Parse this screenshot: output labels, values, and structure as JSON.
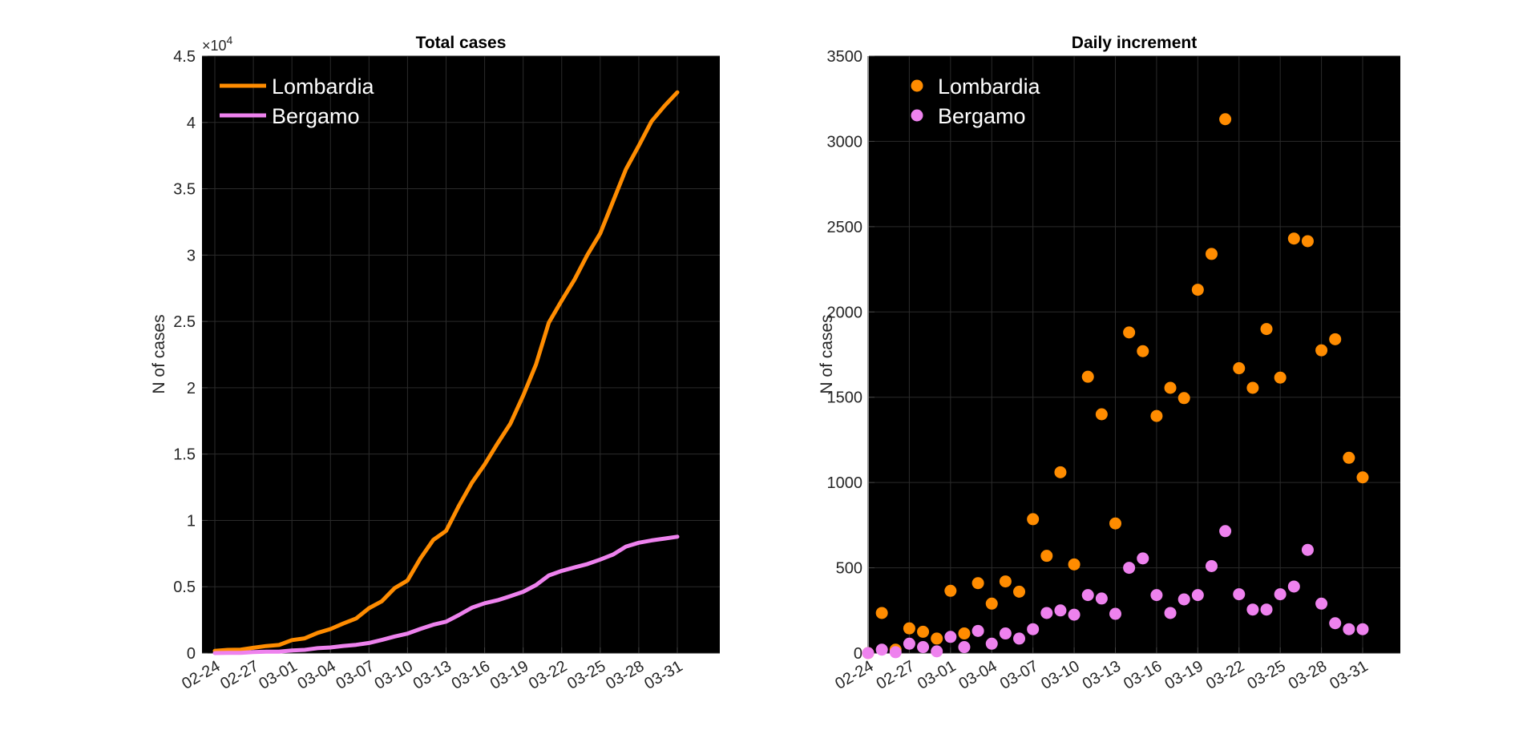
{
  "chart_data": [
    {
      "type": "line",
      "title": "Total cases",
      "ylabel": "N of cases",
      "y_exponent_label": "×10",
      "y_exponent_power": "4",
      "ylim": [
        0,
        4.5
      ],
      "yticks": [
        "0",
        "0.5",
        "1",
        "1.5",
        "2",
        "2.5",
        "3",
        "3.5",
        "4",
        "4.5"
      ],
      "x": [
        "02-24",
        "02-25",
        "02-26",
        "02-27",
        "02-28",
        "02-29",
        "03-01",
        "03-02",
        "03-03",
        "03-04",
        "03-05",
        "03-06",
        "03-07",
        "03-08",
        "03-09",
        "03-10",
        "03-11",
        "03-12",
        "03-13",
        "03-14",
        "03-15",
        "03-16",
        "03-17",
        "03-18",
        "03-19",
        "03-20",
        "03-21",
        "03-22",
        "03-23",
        "03-24",
        "03-25",
        "03-26",
        "03-27",
        "03-28",
        "03-29",
        "03-30",
        "03-31"
      ],
      "xticks": [
        "02-24",
        "02-27",
        "03-01",
        "03-04",
        "03-07",
        "03-10",
        "03-13",
        "03-16",
        "03-19",
        "03-22",
        "03-25",
        "03-28",
        "03-31"
      ],
      "legend": "top-left",
      "background": "#000000",
      "series": [
        {
          "name": "Lombardia",
          "color": "#ff8c00",
          "values": [
            0.017,
            0.024,
            0.026,
            0.04,
            0.053,
            0.061,
            0.098,
            0.111,
            0.152,
            0.181,
            0.223,
            0.261,
            0.338,
            0.391,
            0.49,
            0.547,
            0.713,
            0.853,
            0.921,
            1.11,
            1.283,
            1.421,
            1.579,
            1.728,
            1.941,
            2.176,
            2.491,
            2.658,
            2.816,
            3.002,
            3.163,
            3.406,
            3.647,
            3.824,
            4.009,
            4.124,
            4.227
          ]
        },
        {
          "name": "Bergamo",
          "color": "#ee82ee",
          "values": [
            0.0,
            0.002,
            0.002,
            0.007,
            0.01,
            0.011,
            0.02,
            0.024,
            0.037,
            0.042,
            0.054,
            0.062,
            0.076,
            0.099,
            0.125,
            0.147,
            0.182,
            0.214,
            0.237,
            0.287,
            0.342,
            0.376,
            0.398,
            0.429,
            0.462,
            0.513,
            0.585,
            0.62,
            0.646,
            0.671,
            0.705,
            0.743,
            0.803,
            0.832,
            0.849,
            0.863,
            0.877
          ]
        }
      ]
    },
    {
      "type": "scatter",
      "title": "Daily increment",
      "ylabel": "N of cases",
      "ylim": [
        0,
        3500
      ],
      "yticks": [
        "0",
        "500",
        "1000",
        "1500",
        "2000",
        "2500",
        "3000",
        "3500"
      ],
      "x": [
        "02-24",
        "02-25",
        "02-26",
        "02-27",
        "02-28",
        "02-29",
        "03-01",
        "03-02",
        "03-03",
        "03-04",
        "03-05",
        "03-06",
        "03-07",
        "03-08",
        "03-09",
        "03-10",
        "03-11",
        "03-12",
        "03-13",
        "03-14",
        "03-15",
        "03-16",
        "03-17",
        "03-18",
        "03-19",
        "03-20",
        "03-21",
        "03-22",
        "03-23",
        "03-24",
        "03-25",
        "03-26",
        "03-27",
        "03-28",
        "03-29",
        "03-30",
        "03-31"
      ],
      "xticks": [
        "02-24",
        "02-27",
        "03-01",
        "03-04",
        "03-07",
        "03-10",
        "03-13",
        "03-16",
        "03-19",
        "03-22",
        "03-25",
        "03-28",
        "03-31"
      ],
      "legend": "top-left",
      "background": "#000000",
      "series": [
        {
          "name": "Lombardia",
          "color": "#ff8c00",
          "values": [
            0,
            235,
            20,
            145,
            125,
            85,
            365,
            115,
            410,
            290,
            420,
            360,
            785,
            570,
            1060,
            520,
            1620,
            1400,
            760,
            1880,
            1770,
            1390,
            1555,
            1495,
            2130,
            2340,
            3130,
            1670,
            1555,
            1900,
            1615,
            2430,
            2415,
            1775,
            1840,
            1145,
            1030
          ]
        },
        {
          "name": "Bergamo",
          "color": "#ee82ee",
          "values": [
            0,
            20,
            5,
            55,
            35,
            10,
            95,
            35,
            130,
            55,
            115,
            85,
            140,
            235,
            250,
            225,
            340,
            320,
            230,
            500,
            555,
            340,
            235,
            315,
            340,
            510,
            715,
            345,
            255,
            255,
            345,
            390,
            605,
            290,
            175,
            140,
            140
          ]
        }
      ]
    }
  ]
}
